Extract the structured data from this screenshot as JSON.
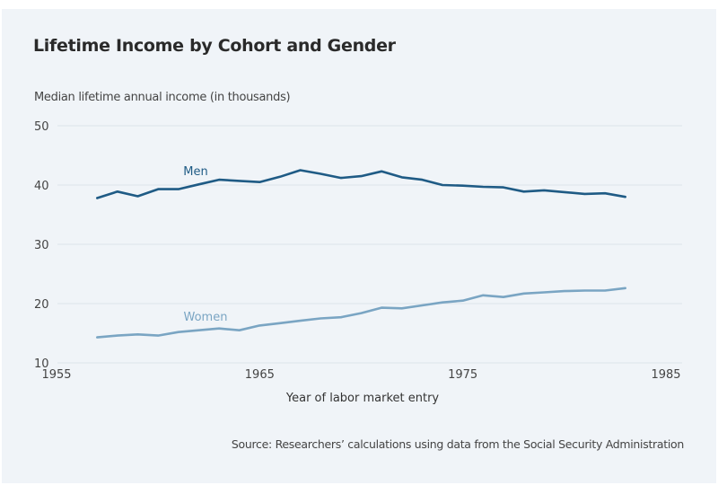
{
  "chart_data": {
    "type": "line",
    "title": "Lifetime Income by Cohort and Gender",
    "ylabel": "Median lifetime annual income (in thousands)",
    "xlabel": "Year of labor market entry",
    "source": "Source: Researchers’ calculations using data from the Social Security Administration",
    "xlim": [
      1955,
      1985
    ],
    "ylim": [
      10,
      50
    ],
    "xticks": [
      1955,
      1965,
      1975,
      1985
    ],
    "yticks": [
      10,
      20,
      30,
      40,
      50
    ],
    "grid": true,
    "legend": "inline-labels",
    "x": [
      1957,
      1958,
      1959,
      1960,
      1961,
      1962,
      1963,
      1964,
      1965,
      1966,
      1967,
      1968,
      1969,
      1970,
      1971,
      1972,
      1973,
      1974,
      1975,
      1976,
      1977,
      1978,
      1979,
      1980,
      1981,
      1982,
      1983
    ],
    "series": [
      {
        "name": "Men",
        "color": "#1f5b85",
        "values": [
          37.8,
          38.9,
          38.1,
          39.3,
          39.3,
          40.1,
          40.9,
          40.7,
          40.5,
          41.4,
          42.5,
          41.9,
          41.2,
          41.5,
          42.3,
          41.3,
          40.9,
          40.0,
          39.9,
          39.7,
          39.6,
          38.9,
          39.1,
          38.8,
          38.5,
          38.6,
          38.0
        ]
      },
      {
        "name": "Women",
        "color": "#7aa5c3",
        "values": [
          14.3,
          14.6,
          14.8,
          14.6,
          15.2,
          15.5,
          15.8,
          15.5,
          16.3,
          16.7,
          17.1,
          17.5,
          17.7,
          18.4,
          19.3,
          19.2,
          19.7,
          20.2,
          20.5,
          21.4,
          21.1,
          21.7,
          21.9,
          22.1,
          22.2,
          22.2,
          22.6
        ]
      }
    ],
    "annotations": [
      {
        "text": "Men",
        "series": "Men"
      },
      {
        "text": "Women",
        "series": "Women"
      }
    ]
  }
}
